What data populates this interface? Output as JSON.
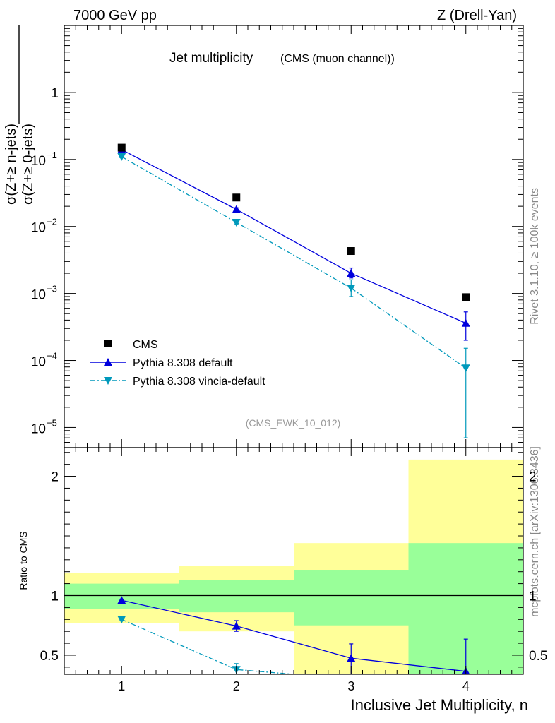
{
  "header": {
    "left": "7000 GeV pp",
    "right": "Z (Drell-Yan)"
  },
  "side_labels": {
    "rivet": "Rivet 3.1.10, ≥ 100k events",
    "mcplots": "mcplots.cern.ch [arXiv:1306.3436]"
  },
  "colors": {
    "cms": "#000000",
    "default": "#0000dd",
    "vincia": "#0099bb",
    "band_inner": "#99ff99",
    "band_outer": "#ffff99"
  },
  "chart_data": [
    {
      "type": "scatter",
      "title": "Jet multiplicity",
      "subtitle": "(CMS (muon channel))",
      "ylabel_num": "σ(Z+≥ n-jets)",
      "ylabel_den": "σ(Z+≥ 0-jets)",
      "watermark": "(CMS_EWK_10_012)",
      "xlim": [
        0.5,
        4.5
      ],
      "ylim": [
        5e-06,
        10
      ],
      "log_y": true,
      "y_ticks": [
        {
          "value": 1,
          "label": "1"
        },
        {
          "value": 0.1,
          "base": "10",
          "exp": "−1"
        },
        {
          "value": 0.01,
          "base": "10",
          "exp": "−2"
        },
        {
          "value": 0.001,
          "base": "10",
          "exp": "−3"
        },
        {
          "value": 0.0001,
          "base": "10",
          "exp": "−4"
        },
        {
          "value": 1e-05,
          "base": "10",
          "exp": "−5"
        }
      ],
      "legend_position": "bottom-left",
      "series": [
        {
          "name": "CMS",
          "x": [
            1,
            2,
            3,
            4
          ],
          "y": [
            0.15,
            0.027,
            0.0043,
            0.00088
          ]
        },
        {
          "name": "Pythia 8.308 default",
          "x": [
            1,
            2,
            3,
            4
          ],
          "y": [
            0.14,
            0.018,
            0.002,
            0.00036
          ],
          "err_low": [
            0.005,
            0.001,
            0.0003,
            0.00016
          ],
          "err_high": [
            0.005,
            0.001,
            0.0004,
            0.00017
          ]
        },
        {
          "name": "Pythia 8.308 vincia-default",
          "x": [
            1,
            2,
            3,
            4
          ],
          "y": [
            0.11,
            0.0115,
            0.0012,
            7.7e-05
          ],
          "err_low": [
            0.004,
            0.0008,
            0.0003,
            7e-05
          ],
          "err_high": [
            0.004,
            0.0008,
            0.0004,
            7.5e-05
          ]
        }
      ]
    },
    {
      "type": "scatter",
      "ylabel": "Ratio to CMS",
      "xlabel": "Inclusive Jet Multiplicity, n",
      "xlim": [
        0.5,
        4.5
      ],
      "ylim": [
        0.34,
        2.24
      ],
      "x_ticks": [
        1,
        2,
        3,
        4
      ],
      "y_ticks": [
        0.5,
        1,
        2
      ],
      "bands": [
        {
          "x0": 0.5,
          "x1": 1.5,
          "inner": [
            0.89,
            1.1
          ],
          "outer": [
            0.77,
            1.19
          ]
        },
        {
          "x0": 1.5,
          "x1": 2.5,
          "inner": [
            0.86,
            1.13
          ],
          "outer": [
            0.7,
            1.25
          ]
        },
        {
          "x0": 2.5,
          "x1": 3.5,
          "inner": [
            0.75,
            1.21
          ],
          "outer": [
            0.34,
            1.44
          ]
        },
        {
          "x0": 3.5,
          "x1": 4.5,
          "inner": [
            0.34,
            1.44
          ],
          "outer": [
            0.34,
            2.14
          ]
        }
      ],
      "series": [
        {
          "name": "Pythia 8.308 default",
          "x": [
            1,
            2,
            3,
            4
          ],
          "y": [
            0.96,
            0.745,
            0.475,
            0.365
          ],
          "err_low": [
            0.01,
            0.045,
            0.14,
            0.03
          ],
          "err_high": [
            0.01,
            0.045,
            0.12,
            0.27
          ]
        },
        {
          "name": "Pythia 8.308 vincia-default",
          "x": [
            1,
            2,
            3
          ],
          "y": [
            0.8,
            0.38,
            0.3
          ],
          "err_low": [
            0.01,
            0.05,
            0
          ],
          "err_high": [
            0.01,
            0.05,
            0
          ]
        }
      ]
    }
  ]
}
